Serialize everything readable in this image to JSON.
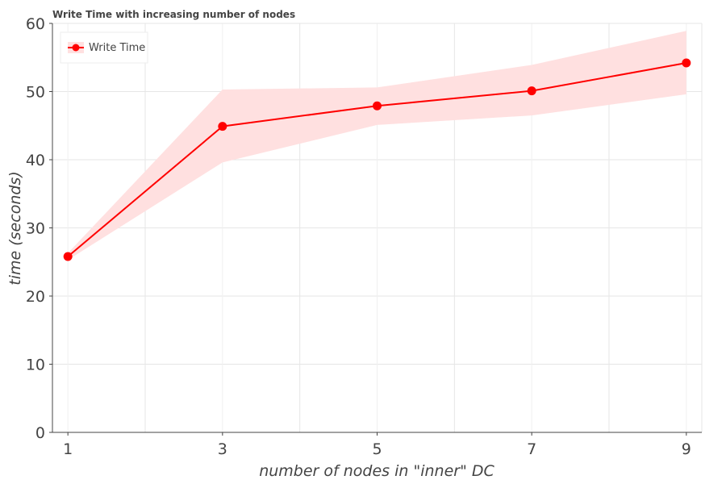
{
  "chart_data": {
    "type": "line",
    "title": "Write Time with increasing number of nodes",
    "xlabel": "number of nodes in \"inner\" DC",
    "ylabel": "time (seconds)",
    "x": [
      1,
      3,
      5,
      7,
      9
    ],
    "x_ticks": [
      1,
      3,
      5,
      7,
      9
    ],
    "y_ticks": [
      0,
      10,
      20,
      30,
      40,
      50,
      60
    ],
    "xlim": [
      0.8,
      9.2
    ],
    "ylim": [
      0,
      60
    ],
    "grid": true,
    "legend_position": "top-left",
    "series": [
      {
        "name": "Write Time",
        "color": "#ff0000",
        "band_color": "#ffe0e0",
        "values": [
          25.8,
          44.9,
          47.9,
          50.1,
          54.2
        ],
        "upper": [
          26.3,
          50.3,
          50.6,
          53.9,
          58.9
        ],
        "lower": [
          25.3,
          39.6,
          45.1,
          46.5,
          49.6
        ]
      }
    ]
  }
}
